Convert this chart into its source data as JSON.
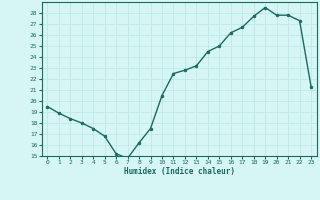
{
  "x": [
    0,
    1,
    2,
    3,
    4,
    5,
    6,
    7,
    8,
    9,
    10,
    11,
    12,
    13,
    14,
    15,
    16,
    17,
    18,
    19,
    20,
    21,
    22,
    23
  ],
  "y": [
    19.5,
    18.9,
    18.4,
    18.0,
    17.5,
    16.8,
    15.2,
    14.8,
    16.2,
    17.5,
    20.5,
    22.5,
    22.8,
    23.2,
    24.5,
    25.0,
    26.2,
    26.7,
    27.7,
    28.5,
    27.8,
    27.8,
    27.3,
    21.3
  ],
  "xlabel": "Humidex (Indice chaleur)",
  "xlim": [
    -0.5,
    23.5
  ],
  "ylim": [
    15,
    29
  ],
  "yticks": [
    15,
    16,
    17,
    18,
    19,
    20,
    21,
    22,
    23,
    24,
    25,
    26,
    27,
    28
  ],
  "xticks": [
    0,
    1,
    2,
    3,
    4,
    5,
    6,
    7,
    8,
    9,
    10,
    11,
    12,
    13,
    14,
    15,
    16,
    17,
    18,
    19,
    20,
    21,
    22,
    23
  ],
  "line_color": "#1a6b5e",
  "marker_color": "#1a6b5e",
  "bg_color": "#d6f5f5",
  "grid_color": "#c0e8e8",
  "axes_color": "#1a6b5e",
  "label_color": "#1a6b5e",
  "tick_label_color": "#1a6b5e"
}
